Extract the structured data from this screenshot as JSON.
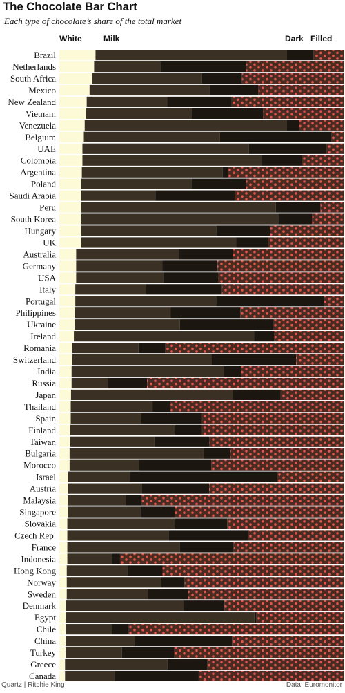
{
  "title": "The Chocolate Bar Chart",
  "subtitle": "Each type of chocolate’s share of the total market",
  "footer": {
    "left": "Quartz | Ritchie King",
    "right": "Data: Euromonitor"
  },
  "colors": {
    "white": "#fdfbd7",
    "milk": "#3a3124",
    "dark": "#1c1610",
    "filled": "#4a2b22",
    "dots": "#e0564d"
  },
  "chart_data": {
    "type": "bar",
    "stacked": true,
    "orientation": "horizontal",
    "unit": "share of total market (%)",
    "xlim": [
      0,
      100
    ],
    "legend": [
      "White",
      "Milk",
      "Dark",
      "Filled"
    ],
    "categories": [
      "Brazil",
      "Netherlands",
      "South Africa",
      "Mexico",
      "New Zealand",
      "Vietnam",
      "Venezuela",
      "Belgium",
      "UAE",
      "Colombia",
      "Argentina",
      "Poland",
      "Saudi Arabia",
      "Peru",
      "South Korea",
      "Hungary",
      "UK",
      "Australia",
      "Germany",
      "USA",
      "Italy",
      "Portugal",
      "Philippines",
      "Ukraine",
      "Ireland",
      "Romania",
      "Switzerland",
      "India",
      "Russia",
      "Japan",
      "Thailand",
      "Spain",
      "Finland",
      "Taiwan",
      "Bulgaria",
      "Morocco",
      "Israel",
      "Austria",
      "Malaysia",
      "Singapore",
      "Slovakia",
      "Czech Rep.",
      "France",
      "Indonesia",
      "Hong Kong",
      "Norway",
      "Sweden",
      "Denmark",
      "Egypt",
      "Chile",
      "China",
      "Turkey",
      "Greece",
      "Canada"
    ],
    "series": [
      {
        "name": "White",
        "values": [
          12.7,
          12.2,
          11.5,
          10.6,
          9.6,
          9.4,
          8.9,
          8.6,
          8.1,
          8.1,
          7.9,
          7.7,
          7.7,
          7.7,
          7.7,
          7.7,
          7.7,
          5.9,
          5.9,
          5.9,
          5.6,
          5.6,
          5.5,
          5.5,
          5.1,
          4.5,
          4.5,
          4.3,
          4.3,
          4.1,
          4.0,
          4.0,
          3.8,
          3.8,
          3.6,
          3.6,
          3.0,
          3.0,
          3.0,
          3.0,
          2.8,
          2.8,
          2.8,
          2.8,
          2.6,
          2.6,
          2.6,
          2.4,
          2.4,
          2.2,
          2.2,
          2.2,
          2.0,
          2.0
        ]
      },
      {
        "name": "Milk",
        "values": [
          67.1,
          23.2,
          38.6,
          42.0,
          28.3,
          36.9,
          71.0,
          47.8,
          58.4,
          62.7,
          49.4,
          38.6,
          26.0,
          68.3,
          69.1,
          47.5,
          54.4,
          36.0,
          30.2,
          30.5,
          24.8,
          49.4,
          33.6,
          36.8,
          63.2,
          23.3,
          48.8,
          53.4,
          12.7,
          56.9,
          28.7,
          24.8,
          36.8,
          29.6,
          47.0,
          24.4,
          21.7,
          25.9,
          20.4,
          25.6,
          37.8,
          35.5,
          39.4,
          15.5,
          21.2,
          33.2,
          28.6,
          41.4,
          66.1,
          16.2,
          24.4,
          19.8,
          36.0,
          17.4
        ]
      },
      {
        "name": "Dark",
        "values": [
          9.5,
          30.1,
          14.0,
          17.3,
          22.6,
          25.3,
          4.2,
          39.1,
          27.3,
          14.4,
          1.8,
          19.2,
          27.8,
          15.7,
          12.0,
          18.8,
          11.1,
          18.9,
          19.4,
          19.4,
          26.7,
          37.9,
          24.4,
          32.9,
          7.2,
          9.4,
          29.8,
          6.1,
          13.8,
          16.7,
          6.1,
          21.3,
          9.5,
          19.3,
          9.4,
          25.3,
          51.8,
          23.7,
          5.6,
          11.9,
          18.3,
          28.0,
          19.0,
          3.0,
          12.4,
          8.2,
          14.0,
          14.1,
          0.6,
          6.0,
          34.0,
          18.3,
          14.0,
          29.5
        ]
      },
      {
        "name": "Filled",
        "values": [
          10.7,
          34.5,
          35.9,
          30.1,
          39.5,
          28.4,
          15.9,
          4.5,
          6.2,
          14.8,
          40.9,
          34.5,
          38.5,
          8.3,
          11.2,
          26.0,
          26.8,
          39.2,
          44.5,
          44.2,
          42.9,
          7.1,
          36.5,
          24.8,
          24.5,
          62.8,
          16.9,
          36.2,
          69.2,
          22.3,
          61.2,
          49.9,
          49.9,
          47.3,
          40.0,
          46.7,
          23.5,
          47.4,
          71.0,
          59.5,
          41.1,
          33.7,
          38.8,
          78.7,
          63.8,
          56.0,
          54.8,
          42.1,
          30.9,
          75.6,
          39.4,
          59.7,
          48.0,
          51.1
        ]
      }
    ]
  }
}
